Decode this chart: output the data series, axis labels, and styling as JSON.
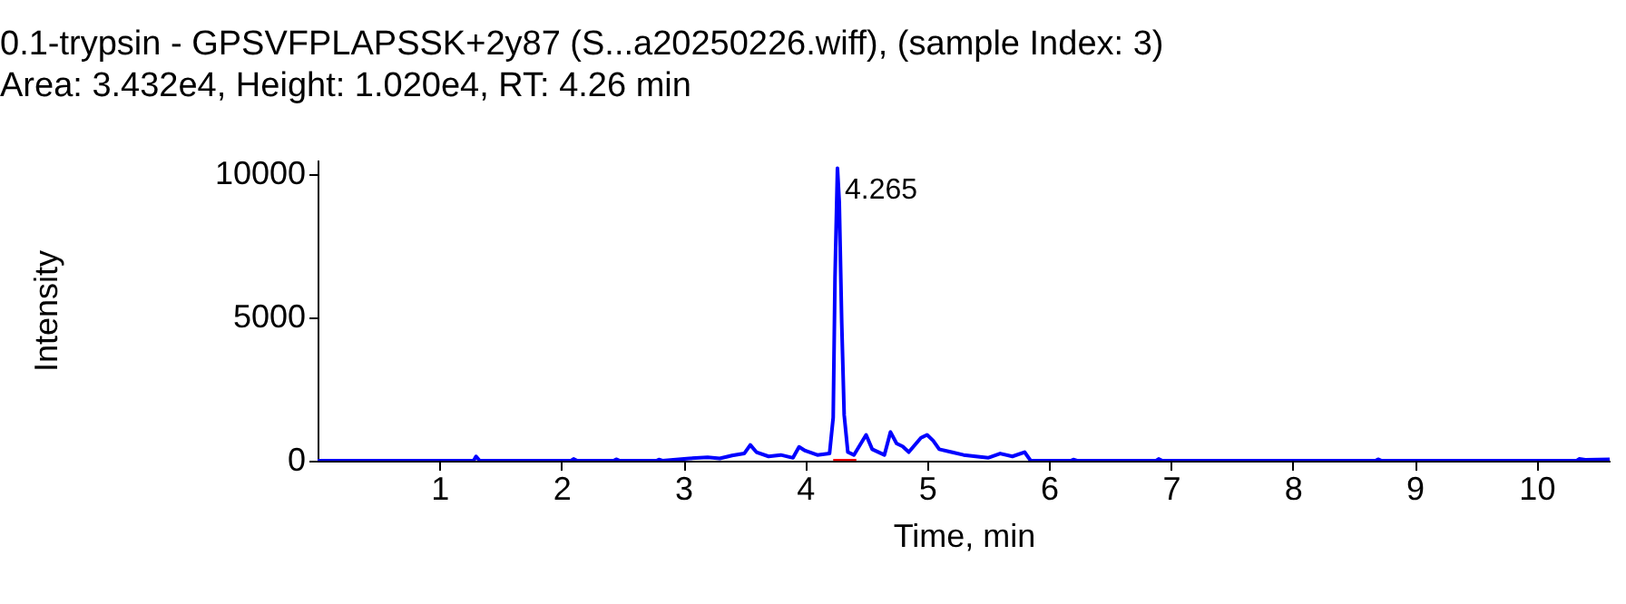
{
  "chart_data": {
    "type": "line",
    "title": "0.1-trypsin - GPSVFPLAPSSK+2y87 (S...a20250226.wiff), (sample Index: 3)",
    "subtitle": "Area: 3.432e4, Height: 1.020e4, RT: 4.26 min",
    "xlabel": "Time, min",
    "ylabel": "Intensity",
    "xlim": [
      0,
      10.6
    ],
    "xticks": [
      1,
      2,
      3,
      4,
      5,
      6,
      7,
      8,
      9,
      10
    ],
    "ylim": [
      0,
      10500
    ],
    "yticks": [
      0,
      5000,
      10000
    ],
    "grid": false,
    "marker": "none",
    "line_style": "solid",
    "annotations": [
      {
        "text": "4.265",
        "x": 4.265,
        "y": 10200
      }
    ],
    "series": [
      {
        "color": "#0000ff",
        "x": [
          0,
          1.28,
          1.3,
          1.33,
          2.08,
          2.1,
          2.13,
          2.43,
          2.45,
          2.48,
          2.78,
          2.8,
          2.83,
          3.05,
          3.2,
          3.3,
          3.4,
          3.5,
          3.55,
          3.6,
          3.7,
          3.8,
          3.9,
          3.95,
          4.0,
          4.1,
          4.2,
          4.23,
          4.245,
          4.265,
          4.28,
          4.3,
          4.32,
          4.35,
          4.4,
          4.5,
          4.55,
          4.65,
          4.7,
          4.75,
          4.8,
          4.85,
          4.95,
          5.0,
          5.05,
          5.1,
          5.2,
          5.3,
          5.4,
          5.5,
          5.6,
          5.7,
          5.8,
          5.85,
          6.18,
          6.2,
          6.23,
          6.88,
          6.9,
          6.93,
          8.68,
          8.7,
          8.73,
          10.33,
          10.35,
          10.4,
          10.6
        ],
        "values": [
          0,
          0,
          150,
          0,
          0,
          60,
          0,
          0,
          50,
          0,
          0,
          40,
          0,
          80,
          120,
          80,
          180,
          250,
          550,
          300,
          150,
          200,
          100,
          480,
          350,
          200,
          250,
          1500,
          6400,
          10200,
          9000,
          4800,
          1600,
          300,
          200,
          900,
          400,
          200,
          1000,
          600,
          500,
          300,
          800,
          900,
          700,
          400,
          300,
          200,
          150,
          100,
          250,
          150,
          300,
          0,
          0,
          40,
          0,
          0,
          60,
          0,
          0,
          50,
          0,
          0,
          60,
          30,
          50
        ]
      },
      {
        "color": "#ff0000",
        "x": [
          4.23,
          4.42
        ],
        "values": [
          0,
          0
        ]
      }
    ]
  }
}
